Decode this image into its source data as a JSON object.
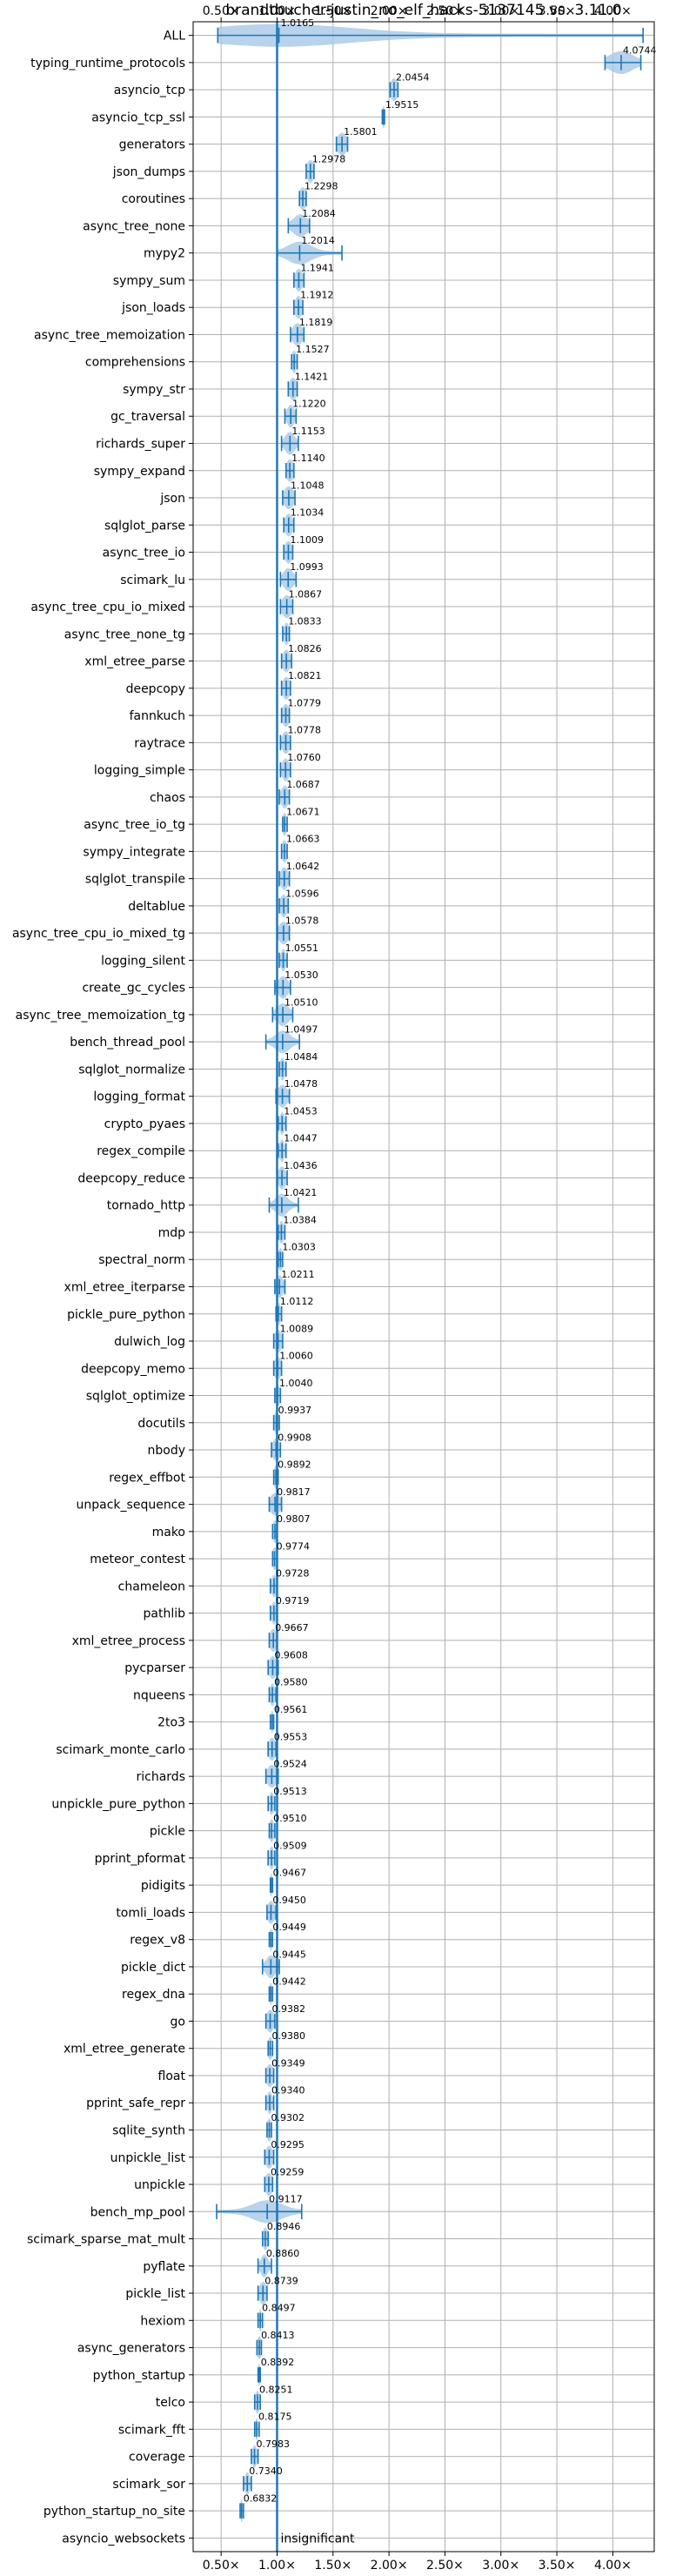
{
  "chart_data": {
    "type": "violin",
    "title": "brandtbucher-justin_no_elf_hacks-5137145 vs. 3.11.0",
    "xlim": [
      0.25,
      4.37
    ],
    "xticks": [
      0.5,
      1.0,
      1.5,
      2.0,
      2.5,
      3.0,
      3.5,
      4.0
    ],
    "xtick_labels": [
      "0.50×",
      "1.00×",
      "1.50×",
      "2.00×",
      "2.50×",
      "3.00×",
      "3.50×",
      "4.00×"
    ],
    "reference_line": 1.0,
    "grid": true,
    "colors": {
      "violin": "#a6c8e6",
      "line": "#1f77b4",
      "reference": "#1f77b4"
    },
    "benchmarks": [
      {
        "name": "ALL",
        "value": 1.0165,
        "label": "1.0165",
        "min": 0.47,
        "max": 4.27,
        "spread": 0.08
      },
      {
        "name": "typing_runtime_protocols",
        "value": 4.0744,
        "label": "4.0744",
        "min": 3.93,
        "max": 4.25,
        "spread": 0.1
      },
      {
        "name": "asyncio_tcp",
        "value": 2.0454,
        "label": "2.0454",
        "min": 2.01,
        "max": 2.08,
        "spread": 0.03
      },
      {
        "name": "asyncio_tcp_ssl",
        "value": 1.9515,
        "label": "1.9515",
        "min": 1.94,
        "max": 1.96,
        "spread": 0.01
      },
      {
        "name": "generators",
        "value": 1.5801,
        "label": "1.5801",
        "min": 1.53,
        "max": 1.63,
        "spread": 0.04
      },
      {
        "name": "json_dumps",
        "value": 1.2978,
        "label": "1.2978",
        "min": 1.26,
        "max": 1.33,
        "spread": 0.03
      },
      {
        "name": "coroutines",
        "value": 1.2298,
        "label": "1.2298",
        "min": 1.2,
        "max": 1.26,
        "spread": 0.03
      },
      {
        "name": "async_tree_none",
        "value": 1.2084,
        "label": "1.2084",
        "min": 1.1,
        "max": 1.29,
        "spread": 0.06
      },
      {
        "name": "mypy2",
        "value": 1.2014,
        "label": "1.2014",
        "min": 1.0,
        "max": 1.58,
        "spread": 0.1
      },
      {
        "name": "sympy_sum",
        "value": 1.1941,
        "label": "1.1941",
        "min": 1.15,
        "max": 1.24,
        "spread": 0.03
      },
      {
        "name": "json_loads",
        "value": 1.1912,
        "label": "1.1912",
        "min": 1.15,
        "max": 1.23,
        "spread": 0.03
      },
      {
        "name": "async_tree_memoization",
        "value": 1.1819,
        "label": "1.1819",
        "min": 1.12,
        "max": 1.24,
        "spread": 0.04
      },
      {
        "name": "comprehensions",
        "value": 1.1527,
        "label": "1.1527",
        "min": 1.13,
        "max": 1.18,
        "spread": 0.02
      },
      {
        "name": "sympy_str",
        "value": 1.1421,
        "label": "1.1421",
        "min": 1.1,
        "max": 1.18,
        "spread": 0.03
      },
      {
        "name": "gc_traversal",
        "value": 1.122,
        "label": "1.1220",
        "min": 1.07,
        "max": 1.17,
        "spread": 0.03
      },
      {
        "name": "richards_super",
        "value": 1.1153,
        "label": "1.1153",
        "min": 1.04,
        "max": 1.19,
        "spread": 0.04
      },
      {
        "name": "sympy_expand",
        "value": 1.114,
        "label": "1.1140",
        "min": 1.08,
        "max": 1.15,
        "spread": 0.03
      },
      {
        "name": "json",
        "value": 1.1048,
        "label": "1.1048",
        "min": 1.05,
        "max": 1.16,
        "spread": 0.04
      },
      {
        "name": "sqlglot_parse",
        "value": 1.1034,
        "label": "1.1034",
        "min": 1.06,
        "max": 1.15,
        "spread": 0.03
      },
      {
        "name": "async_tree_io",
        "value": 1.1009,
        "label": "1.1009",
        "min": 1.06,
        "max": 1.14,
        "spread": 0.03
      },
      {
        "name": "scimark_lu",
        "value": 1.0993,
        "label": "1.0993",
        "min": 1.03,
        "max": 1.17,
        "spread": 0.04
      },
      {
        "name": "async_tree_cpu_io_mixed",
        "value": 1.0867,
        "label": "1.0867",
        "min": 1.03,
        "max": 1.14,
        "spread": 0.04
      },
      {
        "name": "async_tree_none_tg",
        "value": 1.0833,
        "label": "1.0833",
        "min": 1.05,
        "max": 1.11,
        "spread": 0.02
      },
      {
        "name": "xml_etree_parse",
        "value": 1.0826,
        "label": "1.0826",
        "min": 1.04,
        "max": 1.13,
        "spread": 0.03
      },
      {
        "name": "deepcopy",
        "value": 1.0821,
        "label": "1.0821",
        "min": 1.04,
        "max": 1.12,
        "spread": 0.03
      },
      {
        "name": "fannkuch",
        "value": 1.0779,
        "label": "1.0779",
        "min": 1.04,
        "max": 1.11,
        "spread": 0.03
      },
      {
        "name": "raytrace",
        "value": 1.0778,
        "label": "1.0778",
        "min": 1.03,
        "max": 1.12,
        "spread": 0.03
      },
      {
        "name": "logging_simple",
        "value": 1.076,
        "label": "1.0760",
        "min": 1.03,
        "max": 1.12,
        "spread": 0.03
      },
      {
        "name": "chaos",
        "value": 1.0687,
        "label": "1.0687",
        "min": 1.02,
        "max": 1.11,
        "spread": 0.03
      },
      {
        "name": "async_tree_io_tg",
        "value": 1.0671,
        "label": "1.0671",
        "min": 1.05,
        "max": 1.09,
        "spread": 0.02
      },
      {
        "name": "sympy_integrate",
        "value": 1.0663,
        "label": "1.0663",
        "min": 1.04,
        "max": 1.09,
        "spread": 0.02
      },
      {
        "name": "sqlglot_transpile",
        "value": 1.0642,
        "label": "1.0642",
        "min": 1.02,
        "max": 1.11,
        "spread": 0.03
      },
      {
        "name": "deltablue",
        "value": 1.0596,
        "label": "1.0596",
        "min": 1.02,
        "max": 1.1,
        "spread": 0.03
      },
      {
        "name": "async_tree_cpu_io_mixed_tg",
        "value": 1.0578,
        "label": "1.0578",
        "min": 1.0,
        "max": 1.11,
        "spread": 0.04
      },
      {
        "name": "logging_silent",
        "value": 1.0551,
        "label": "1.0551",
        "min": 1.02,
        "max": 1.09,
        "spread": 0.02
      },
      {
        "name": "create_gc_cycles",
        "value": 1.053,
        "label": "1.0530",
        "min": 0.98,
        "max": 1.12,
        "spread": 0.04
      },
      {
        "name": "async_tree_memoization_tg",
        "value": 1.051,
        "label": "1.0510",
        "min": 0.96,
        "max": 1.14,
        "spread": 0.05
      },
      {
        "name": "bench_thread_pool",
        "value": 1.0497,
        "label": "1.0497",
        "min": 0.9,
        "max": 1.2,
        "spread": 0.06
      },
      {
        "name": "sqlglot_normalize",
        "value": 1.0484,
        "label": "1.0484",
        "min": 1.02,
        "max": 1.08,
        "spread": 0.02
      },
      {
        "name": "logging_format",
        "value": 1.0478,
        "label": "1.0478",
        "min": 0.99,
        "max": 1.11,
        "spread": 0.04
      },
      {
        "name": "crypto_pyaes",
        "value": 1.0453,
        "label": "1.0453",
        "min": 1.01,
        "max": 1.08,
        "spread": 0.02
      },
      {
        "name": "regex_compile",
        "value": 1.0447,
        "label": "1.0447",
        "min": 1.01,
        "max": 1.08,
        "spread": 0.02
      },
      {
        "name": "deepcopy_reduce",
        "value": 1.0436,
        "label": "1.0436",
        "min": 1.0,
        "max": 1.09,
        "spread": 0.03
      },
      {
        "name": "tornado_http",
        "value": 1.0421,
        "label": "1.0421",
        "min": 0.93,
        "max": 1.19,
        "spread": 0.05
      },
      {
        "name": "mdp",
        "value": 1.0384,
        "label": "1.0384",
        "min": 1.01,
        "max": 1.07,
        "spread": 0.02
      },
      {
        "name": "spectral_norm",
        "value": 1.0303,
        "label": "1.0303",
        "min": 1.01,
        "max": 1.05,
        "spread": 0.02
      },
      {
        "name": "xml_etree_iterparse",
        "value": 1.0211,
        "label": "1.0211",
        "min": 0.98,
        "max": 1.07,
        "spread": 0.03
      },
      {
        "name": "pickle_pure_python",
        "value": 1.0112,
        "label": "1.0112",
        "min": 0.99,
        "max": 1.04,
        "spread": 0.02
      },
      {
        "name": "dulwich_log",
        "value": 1.0089,
        "label": "1.0089",
        "min": 0.97,
        "max": 1.05,
        "spread": 0.03
      },
      {
        "name": "deepcopy_memo",
        "value": 1.006,
        "label": "1.0060",
        "min": 0.97,
        "max": 1.04,
        "spread": 0.03
      },
      {
        "name": "sqlglot_optimize",
        "value": 1.004,
        "label": "1.0040",
        "min": 0.98,
        "max": 1.03,
        "spread": 0.02
      },
      {
        "name": "docutils",
        "value": 0.9937,
        "label": "0.9937",
        "min": 0.97,
        "max": 1.02,
        "spread": 0.02
      },
      {
        "name": "nbody",
        "value": 0.9908,
        "label": "0.9908",
        "min": 0.95,
        "max": 1.03,
        "spread": 0.03
      },
      {
        "name": "regex_effbot",
        "value": 0.9892,
        "label": "0.9892",
        "min": 0.97,
        "max": 1.01,
        "spread": 0.02
      },
      {
        "name": "unpack_sequence",
        "value": 0.9817,
        "label": "0.9817",
        "min": 0.93,
        "max": 1.04,
        "spread": 0.04
      },
      {
        "name": "mako",
        "value": 0.9807,
        "label": "0.9807",
        "min": 0.96,
        "max": 1.0,
        "spread": 0.02
      },
      {
        "name": "meteor_contest",
        "value": 0.9774,
        "label": "0.9774",
        "min": 0.96,
        "max": 1.0,
        "spread": 0.02
      },
      {
        "name": "chameleon",
        "value": 0.9728,
        "label": "0.9728",
        "min": 0.94,
        "max": 1.0,
        "spread": 0.02
      },
      {
        "name": "pathlib",
        "value": 0.9719,
        "label": "0.9719",
        "min": 0.94,
        "max": 1.0,
        "spread": 0.02
      },
      {
        "name": "xml_etree_process",
        "value": 0.9667,
        "label": "0.9667",
        "min": 0.93,
        "max": 1.0,
        "spread": 0.03
      },
      {
        "name": "pycparser",
        "value": 0.9608,
        "label": "0.9608",
        "min": 0.92,
        "max": 1.01,
        "spread": 0.03
      },
      {
        "name": "nqueens",
        "value": 0.958,
        "label": "0.9580",
        "min": 0.93,
        "max": 0.99,
        "spread": 0.02
      },
      {
        "name": "2to3",
        "value": 0.9561,
        "label": "0.9561",
        "min": 0.94,
        "max": 0.97,
        "spread": 0.01
      },
      {
        "name": "scimark_monte_carlo",
        "value": 0.9553,
        "label": "0.9553",
        "min": 0.92,
        "max": 0.99,
        "spread": 0.03
      },
      {
        "name": "richards",
        "value": 0.9524,
        "label": "0.9524",
        "min": 0.9,
        "max": 1.01,
        "spread": 0.04
      },
      {
        "name": "unpickle_pure_python",
        "value": 0.9513,
        "label": "0.9513",
        "min": 0.92,
        "max": 0.98,
        "spread": 0.02
      },
      {
        "name": "pickle",
        "value": 0.951,
        "label": "0.9510",
        "min": 0.93,
        "max": 0.98,
        "spread": 0.02
      },
      {
        "name": "pprint_pformat",
        "value": 0.9509,
        "label": "0.9509",
        "min": 0.92,
        "max": 0.98,
        "spread": 0.02
      },
      {
        "name": "pidigits",
        "value": 0.9467,
        "label": "0.9467",
        "min": 0.94,
        "max": 0.96,
        "spread": 0.01
      },
      {
        "name": "tomli_loads",
        "value": 0.945,
        "label": "0.9450",
        "min": 0.91,
        "max": 0.99,
        "spread": 0.03
      },
      {
        "name": "regex_v8",
        "value": 0.9449,
        "label": "0.9449",
        "min": 0.93,
        "max": 0.96,
        "spread": 0.01
      },
      {
        "name": "pickle_dict",
        "value": 0.9445,
        "label": "0.9445",
        "min": 0.87,
        "max": 1.02,
        "spread": 0.04
      },
      {
        "name": "regex_dna",
        "value": 0.9442,
        "label": "0.9442",
        "min": 0.93,
        "max": 0.96,
        "spread": 0.01
      },
      {
        "name": "go",
        "value": 0.9382,
        "label": "0.9382",
        "min": 0.9,
        "max": 0.98,
        "spread": 0.03
      },
      {
        "name": "xml_etree_generate",
        "value": 0.938,
        "label": "0.9380",
        "min": 0.92,
        "max": 0.96,
        "spread": 0.02
      },
      {
        "name": "float",
        "value": 0.9349,
        "label": "0.9349",
        "min": 0.9,
        "max": 0.97,
        "spread": 0.03
      },
      {
        "name": "pprint_safe_repr",
        "value": 0.934,
        "label": "0.9340",
        "min": 0.9,
        "max": 0.97,
        "spread": 0.02
      },
      {
        "name": "sqlite_synth",
        "value": 0.9302,
        "label": "0.9302",
        "min": 0.91,
        "max": 0.95,
        "spread": 0.02
      },
      {
        "name": "unpickle_list",
        "value": 0.9295,
        "label": "0.9295",
        "min": 0.89,
        "max": 0.97,
        "spread": 0.03
      },
      {
        "name": "unpickle",
        "value": 0.9259,
        "label": "0.9259",
        "min": 0.89,
        "max": 0.96,
        "spread": 0.03
      },
      {
        "name": "bench_mp_pool",
        "value": 0.9117,
        "label": "0.9117",
        "min": 0.46,
        "max": 1.22,
        "spread": 0.08
      },
      {
        "name": "scimark_sparse_mat_mult",
        "value": 0.8946,
        "label": "0.8946",
        "min": 0.87,
        "max": 0.92,
        "spread": 0.02
      },
      {
        "name": "pyflate",
        "value": 0.886,
        "label": "0.8860",
        "min": 0.83,
        "max": 0.95,
        "spread": 0.03
      },
      {
        "name": "pickle_list",
        "value": 0.8739,
        "label": "0.8739",
        "min": 0.83,
        "max": 0.91,
        "spread": 0.03
      },
      {
        "name": "hexiom",
        "value": 0.8497,
        "label": "0.8497",
        "min": 0.83,
        "max": 0.87,
        "spread": 0.01
      },
      {
        "name": "async_generators",
        "value": 0.8413,
        "label": "0.8413",
        "min": 0.82,
        "max": 0.86,
        "spread": 0.02
      },
      {
        "name": "python_startup",
        "value": 0.8392,
        "label": "0.8392",
        "min": 0.83,
        "max": 0.85,
        "spread": 0.01
      },
      {
        "name": "telco",
        "value": 0.8251,
        "label": "0.8251",
        "min": 0.8,
        "max": 0.85,
        "spread": 0.02
      },
      {
        "name": "scimark_fft",
        "value": 0.8175,
        "label": "0.8175",
        "min": 0.8,
        "max": 0.84,
        "spread": 0.01
      },
      {
        "name": "coverage",
        "value": 0.7983,
        "label": "0.7983",
        "min": 0.77,
        "max": 0.83,
        "spread": 0.02
      },
      {
        "name": "scimark_sor",
        "value": 0.734,
        "label": "0.7340",
        "min": 0.7,
        "max": 0.77,
        "spread": 0.02
      },
      {
        "name": "python_startup_no_site",
        "value": 0.6832,
        "label": "0.6832",
        "min": 0.67,
        "max": 0.7,
        "spread": 0.01
      },
      {
        "name": "asyncio_websockets",
        "value": null,
        "label": "insignificant",
        "min": null,
        "max": null,
        "spread": 0
      }
    ]
  }
}
